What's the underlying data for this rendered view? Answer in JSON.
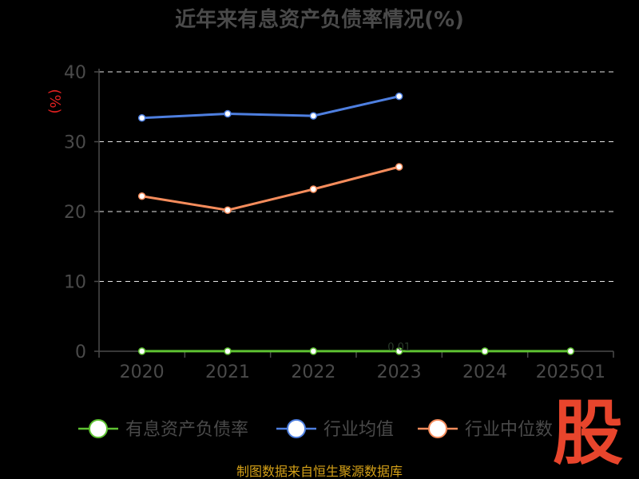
{
  "chart_data": {
    "type": "line",
    "title": "近年来有息资产负债率情况(%)",
    "ylabel": "(%)",
    "categories": [
      "2020",
      "2021",
      "2022",
      "2023",
      "2024",
      "2025Q1"
    ],
    "yticks": [
      "0",
      "10",
      "20",
      "30",
      "40"
    ],
    "ylim": [
      0,
      40
    ],
    "grid": true,
    "legend_position": "bottom",
    "series": [
      {
        "name": "有息资产负债率",
        "color": "#5ec232",
        "values": [
          0.01,
          0.01,
          0.01,
          0.01,
          0.01,
          0.01
        ]
      },
      {
        "name": "行业均值",
        "color": "#4e7fe0",
        "values": [
          33.4,
          34.0,
          33.7,
          36.5,
          null,
          null
        ]
      },
      {
        "name": "行业中位数",
        "color": "#f58c5c",
        "values": [
          22.2,
          20.2,
          23.2,
          26.4,
          null,
          null
        ]
      }
    ],
    "annotations": [
      "0.01"
    ]
  },
  "source": "制图数据来自恒生聚源数据库",
  "logo_text": "股"
}
